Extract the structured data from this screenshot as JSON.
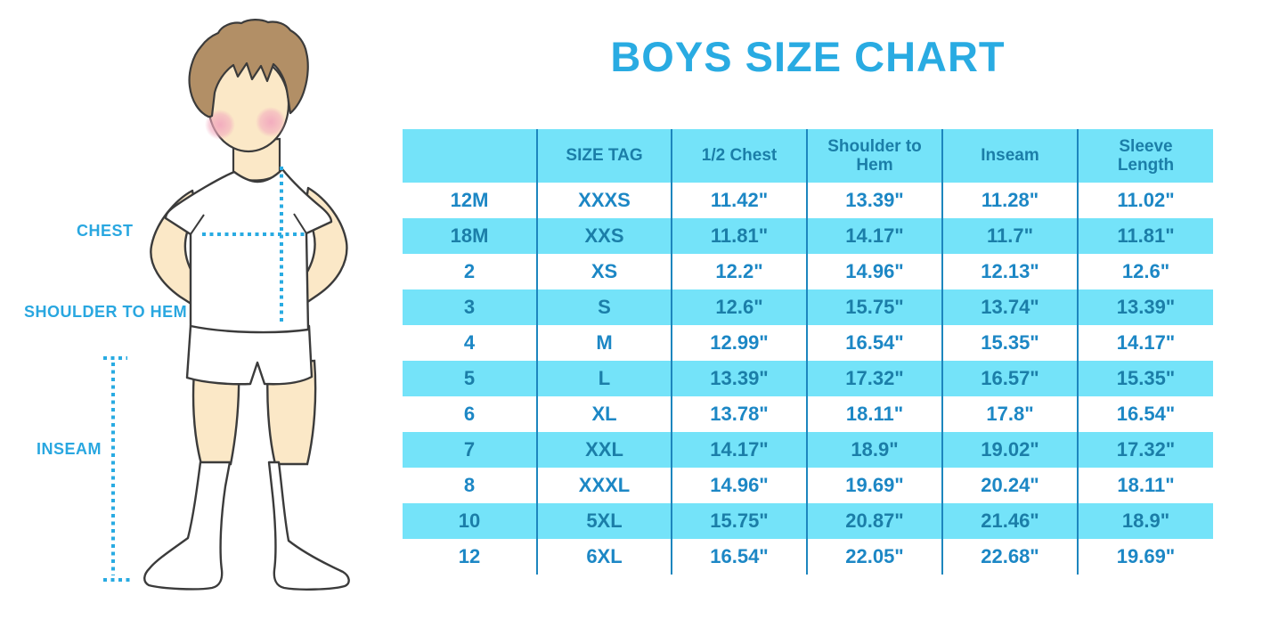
{
  "title": "BOYS SIZE CHART",
  "labels": {
    "chest": "CHEST",
    "shoulder_to_hem": "SHOULDER TO HEM",
    "inseam": "INSEAM"
  },
  "chart_data": {
    "type": "table",
    "title": "BOYS SIZE CHART",
    "units": "inches",
    "columns": [
      "",
      "SIZE TAG",
      "1/2 Chest",
      "Shoulder to Hem",
      "Inseam",
      "Sleeve Length"
    ],
    "rows": [
      [
        "12M",
        "XXXS",
        "11.42\"",
        "13.39\"",
        "11.28\"",
        "11.02\""
      ],
      [
        "18M",
        "XXS",
        "11.81\"",
        "14.17\"",
        "11.7\"",
        "11.81\""
      ],
      [
        "2",
        "XS",
        "12.2\"",
        "14.96\"",
        "12.13\"",
        "12.6\""
      ],
      [
        "3",
        "S",
        "12.6\"",
        "15.75\"",
        "13.74\"",
        "13.39\""
      ],
      [
        "4",
        "M",
        "12.99\"",
        "16.54\"",
        "15.35\"",
        "14.17\""
      ],
      [
        "5",
        "L",
        "13.39\"",
        "17.32\"",
        "16.57\"",
        "15.35\""
      ],
      [
        "6",
        "XL",
        "13.78\"",
        "18.11\"",
        "17.8\"",
        "16.54\""
      ],
      [
        "7",
        "XXL",
        "14.17\"",
        "18.9\"",
        "19.02\"",
        "17.32\""
      ],
      [
        "8",
        "XXXL",
        "14.96\"",
        "19.69\"",
        "20.24\"",
        "18.11\""
      ],
      [
        "10",
        "5XL",
        "15.75\"",
        "20.87\"",
        "21.46\"",
        "18.9\""
      ],
      [
        "12",
        "6XL",
        "16.54\"",
        "22.05\"",
        "22.68\"",
        "19.69\""
      ]
    ]
  },
  "colors": {
    "title_blue": "#29ABE2",
    "label_blue": "#29A7E0",
    "row_cyan": "#74E3F9",
    "header_text": "#1B7EA8",
    "data_text_on_white": "#1C87C5",
    "data_text_on_cyan": "#1B7EA8",
    "table_line": "#1D86BE",
    "dotted_line": "#29ABE2",
    "skin": "#FBE8C7",
    "hair": "#B28F66",
    "outline": "#3B3B3B"
  }
}
